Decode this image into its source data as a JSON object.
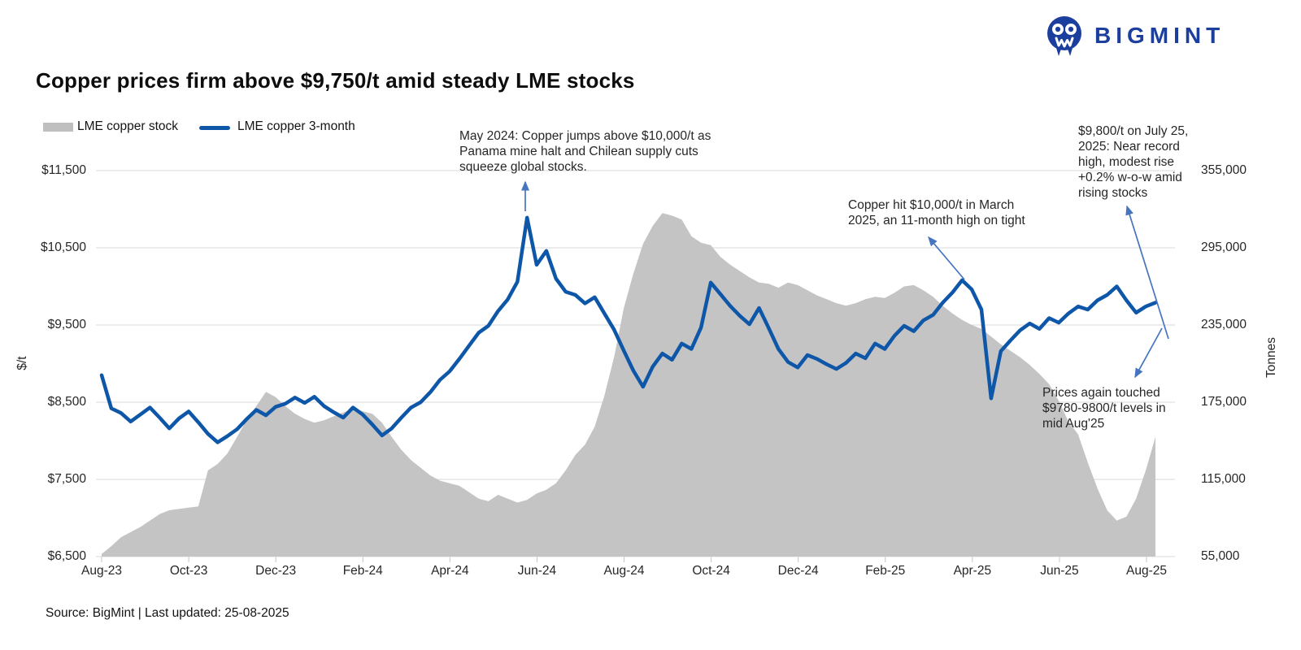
{
  "header": {
    "logo_text": "BIGMINT",
    "title": "Copper prices firm above $9,750/t amid steady LME stocks"
  },
  "legend": [
    {
      "label": "LME copper stock",
      "swatch": "area",
      "color": "#bfbfbf"
    },
    {
      "label": "LME copper 3-month",
      "swatch": "line",
      "color": "#0e57a8"
    }
  ],
  "footer": {
    "source_line": "Source: BigMint | Last updated: 25-08-2025"
  },
  "colors": {
    "brand_navy": "#1c3f9e",
    "price_line": "#0e57a8",
    "stock_area": "#c4c4c4",
    "gridline": "#d9d9d9",
    "arrow_blue": "#4675c0"
  },
  "chart_data": {
    "type": "line",
    "title": "Copper prices firm above $9,750/t amid steady LME stocks",
    "x": {
      "start": "Aug-23",
      "end": "Aug-25",
      "tick_labels": [
        "Aug-23",
        "Oct-23",
        "Dec-23",
        "Feb-24",
        "Apr-24",
        "Jun-24",
        "Aug-24",
        "Oct-24",
        "Dec-24",
        "Feb-25",
        "Apr-25",
        "Jun-25",
        "Aug-25"
      ]
    },
    "y_left": {
      "label": "$/t",
      "min": 6500,
      "max": 11500,
      "ticks": [
        "$11,500",
        "$10,500",
        "$9,500",
        "$8,500",
        "$7,500",
        "$6,500"
      ]
    },
    "y_right": {
      "label": "Tonnes",
      "min": 55000,
      "max": 355000,
      "ticks": [
        "355,000",
        "295,000",
        "235,000",
        "175,000",
        "115,000",
        "55,000"
      ]
    },
    "grid": true,
    "legend_position": "top-left",
    "series": [
      {
        "name": "LME copper stock",
        "type": "area",
        "axis": "right",
        "color": "#c4c4c4",
        "unit": "tonnes",
        "values": [
          57000,
          63000,
          70000,
          74000,
          78000,
          83000,
          88000,
          91000,
          92000,
          93000,
          94000,
          122000,
          127000,
          135000,
          148000,
          161000,
          172000,
          183000,
          179000,
          172000,
          166000,
          162000,
          159000,
          161000,
          164000,
          167000,
          170000,
          168000,
          166000,
          159000,
          148000,
          138000,
          130000,
          124000,
          118000,
          114000,
          112000,
          110000,
          105000,
          100000,
          98000,
          103000,
          100000,
          97000,
          99000,
          104000,
          107000,
          112000,
          122000,
          134000,
          142000,
          156000,
          180000,
          210000,
          248000,
          275000,
          298000,
          312000,
          322000,
          320000,
          317000,
          304000,
          299000,
          297000,
          288000,
          282000,
          277000,
          272000,
          268000,
          267000,
          264000,
          268000,
          266000,
          262000,
          258000,
          255000,
          252000,
          250000,
          252000,
          255000,
          257000,
          256000,
          260000,
          265000,
          266000,
          262000,
          257000,
          250000,
          244000,
          239000,
          235000,
          232000,
          226000,
          220000,
          215000,
          210000,
          204000,
          197000,
          189000,
          176000,
          160000,
          150000,
          128000,
          108000,
          91000,
          83000,
          86000,
          100000,
          122000,
          148000
        ]
      },
      {
        "name": "LME copper 3-month",
        "type": "line",
        "axis": "left",
        "color": "#0e57a8",
        "unit": "$/t",
        "values": [
          8850,
          8420,
          8360,
          8250,
          8340,
          8430,
          8300,
          8160,
          8290,
          8380,
          8240,
          8090,
          7980,
          8060,
          8150,
          8280,
          8400,
          8330,
          8440,
          8480,
          8560,
          8490,
          8570,
          8450,
          8370,
          8300,
          8430,
          8340,
          8210,
          8070,
          8160,
          8300,
          8430,
          8500,
          8630,
          8790,
          8900,
          9060,
          9230,
          9400,
          9490,
          9680,
          9830,
          10060,
          10890,
          10280,
          10460,
          10100,
          9930,
          9890,
          9780,
          9860,
          9650,
          9440,
          9170,
          8910,
          8700,
          8960,
          9130,
          9050,
          9260,
          9190,
          9470,
          10050,
          9900,
          9750,
          9620,
          9510,
          9720,
          9460,
          9190,
          9020,
          8950,
          9110,
          9060,
          8990,
          8930,
          9010,
          9130,
          9070,
          9260,
          9190,
          9360,
          9490,
          9420,
          9560,
          9630,
          9790,
          9920,
          10080,
          9960,
          9700,
          8550,
          9160,
          9300,
          9430,
          9520,
          9450,
          9590,
          9530,
          9650,
          9740,
          9700,
          9820,
          9890,
          10000,
          9820,
          9660,
          9740,
          9790
        ]
      }
    ],
    "annotations": [
      {
        "text": "May 2024: Copper jumps above $10,000/t as Panama mine halt and Chilean supply cuts squeeze global stocks."
      },
      {
        "text": "Copper hit $10,000/t in March 2025, an 11-month high on tight"
      },
      {
        "text": "$9,800/t on July 25, 2025: Near record high, modest rise +0.2% w-o-w amid rising stocks"
      },
      {
        "text": "Prices again touched $9780-9800/t levels in mid Aug'25"
      }
    ]
  }
}
